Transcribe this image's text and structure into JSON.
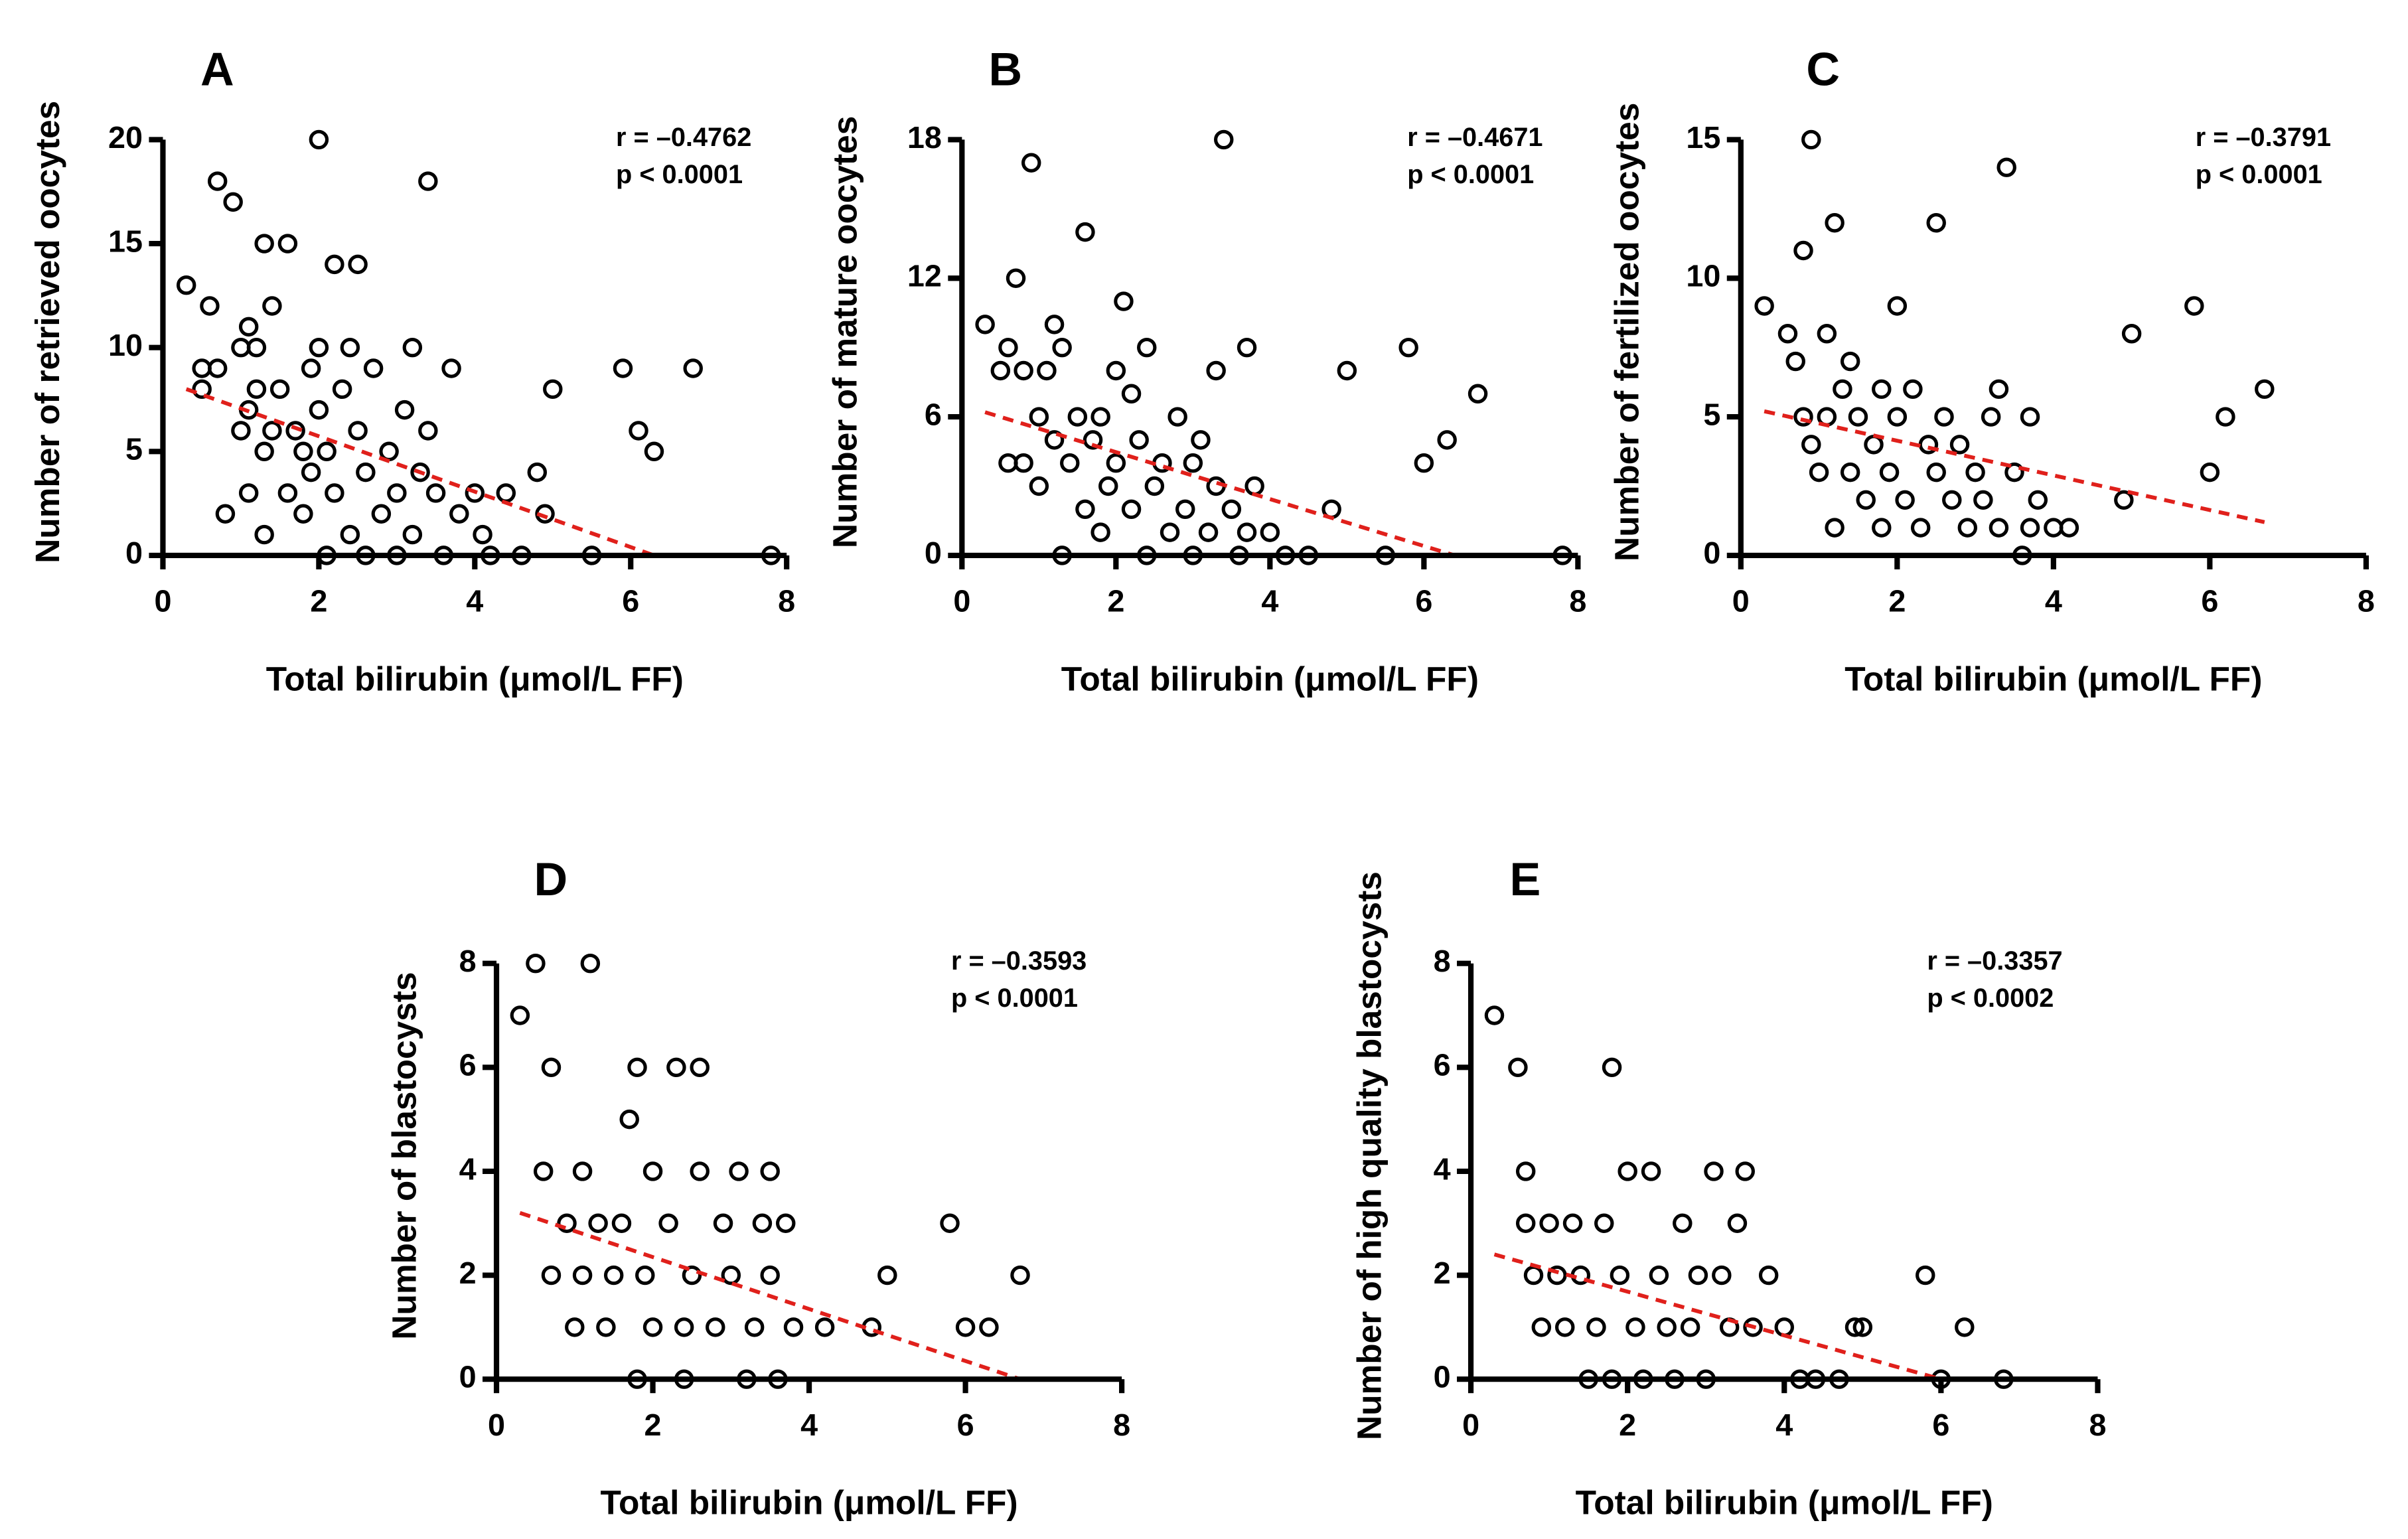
{
  "chart_data": [
    {
      "type": "scatter",
      "panel": "A",
      "annotation": [
        "r = –0.4762",
        "p < 0.0001"
      ],
      "xlabel": "Total bilirubin (μmol/L FF)",
      "ylabel": "Number of retrieved oocytes",
      "xlim": [
        0,
        8
      ],
      "ylim": [
        0,
        20
      ],
      "xticks": [
        0,
        2,
        4,
        6,
        8
      ],
      "yticks": [
        0,
        5,
        10,
        15,
        20
      ],
      "marker_color": "#000000",
      "x": [
        0.3,
        0.5,
        0.5,
        0.6,
        0.7,
        0.7,
        0.8,
        0.9,
        1.0,
        1.0,
        1.1,
        1.1,
        1.1,
        1.2,
        1.2,
        1.3,
        1.3,
        1.3,
        1.4,
        1.4,
        1.5,
        1.6,
        1.6,
        1.7,
        1.8,
        1.8,
        1.9,
        1.9,
        2.0,
        2.0,
        2.0,
        2.1,
        2.1,
        2.2,
        2.2,
        2.3,
        2.4,
        2.4,
        2.5,
        2.5,
        2.6,
        2.6,
        2.7,
        2.8,
        2.9,
        3.0,
        3.0,
        3.1,
        3.2,
        3.2,
        3.3,
        3.4,
        3.4,
        3.5,
        3.6,
        3.7,
        3.8,
        4.0,
        4.1,
        4.2,
        4.4,
        4.6,
        4.8,
        4.9,
        5.0,
        5.5,
        5.9,
        6.1,
        6.3,
        6.8,
        7.8
      ],
      "y": [
        13,
        8,
        9,
        12,
        9,
        18,
        2,
        17,
        10,
        6,
        11,
        7,
        3,
        8,
        10,
        15,
        5,
        1,
        12,
        6,
        8,
        3,
        15,
        6,
        5,
        2,
        9,
        4,
        7,
        20,
        10,
        5,
        0,
        14,
        3,
        8,
        1,
        10,
        6,
        14,
        4,
        0,
        9,
        2,
        5,
        3,
        0,
        7,
        10,
        1,
        4,
        18,
        6,
        3,
        0,
        9,
        2,
        3,
        1,
        0,
        3,
        0,
        4,
        2,
        8,
        0,
        9,
        6,
        5,
        9,
        0
      ],
      "trendline": {
        "color": "#e0201b",
        "x": [
          0.3,
          6.3
        ],
        "y": [
          8,
          0
        ]
      }
    },
    {
      "type": "scatter",
      "panel": "B",
      "annotation": [
        "r = –0.4671",
        "p < 0.0001"
      ],
      "xlabel": "Total bilirubin (μmol/L FF)",
      "ylabel": "Number of mature oocytes",
      "xlim": [
        0,
        8
      ],
      "ylim": [
        0,
        18
      ],
      "xticks": [
        0,
        2,
        4,
        6,
        8
      ],
      "yticks": [
        0,
        6,
        12,
        18
      ],
      "marker_color": "#000000",
      "x": [
        0.3,
        0.5,
        0.6,
        0.6,
        0.7,
        0.8,
        0.8,
        0.9,
        1.0,
        1.0,
        1.1,
        1.2,
        1.2,
        1.3,
        1.3,
        1.4,
        1.5,
        1.6,
        1.6,
        1.7,
        1.8,
        1.8,
        1.9,
        2.0,
        2.0,
        2.1,
        2.2,
        2.2,
        2.3,
        2.4,
        2.4,
        2.5,
        2.6,
        2.7,
        2.8,
        2.9,
        3.0,
        3.0,
        3.1,
        3.2,
        3.3,
        3.3,
        3.4,
        3.5,
        3.6,
        3.7,
        3.7,
        3.8,
        4.0,
        4.2,
        4.5,
        4.8,
        5.0,
        5.5,
        5.8,
        6.0,
        6.3,
        6.7,
        7.8
      ],
      "y": [
        10,
        8,
        4,
        9,
        12,
        4,
        8,
        17,
        6,
        3,
        8,
        10,
        5,
        0,
        9,
        4,
        6,
        2,
        14,
        5,
        1,
        6,
        3,
        8,
        4,
        11,
        2,
        7,
        5,
        0,
        9,
        3,
        4,
        1,
        6,
        2,
        0,
        4,
        5,
        1,
        8,
        3,
        18,
        2,
        0,
        9,
        1,
        3,
        1,
        0,
        0,
        2,
        8,
        0,
        9,
        4,
        5,
        7,
        0
      ],
      "trendline": {
        "color": "#e0201b",
        "x": [
          0.3,
          6.4
        ],
        "y": [
          6.2,
          0
        ]
      }
    },
    {
      "type": "scatter",
      "panel": "C",
      "annotation": [
        "r = –0.3791",
        "p < 0.0001"
      ],
      "xlabel": "Total bilirubin (μmol/L FF)",
      "ylabel": "Number of fertilized oocytes",
      "xlim": [
        0,
        8
      ],
      "ylim": [
        0,
        15
      ],
      "xticks": [
        0,
        2,
        4,
        6,
        8
      ],
      "yticks": [
        0,
        5,
        10,
        15
      ],
      "marker_color": "#000000",
      "x": [
        0.3,
        0.6,
        0.7,
        0.8,
        0.8,
        0.9,
        0.9,
        1.0,
        1.1,
        1.1,
        1.2,
        1.2,
        1.3,
        1.4,
        1.4,
        1.5,
        1.6,
        1.7,
        1.8,
        1.8,
        1.9,
        2.0,
        2.0,
        2.1,
        2.2,
        2.3,
        2.4,
        2.5,
        2.5,
        2.6,
        2.7,
        2.8,
        2.9,
        3.0,
        3.1,
        3.2,
        3.3,
        3.3,
        3.4,
        3.5,
        3.6,
        3.7,
        3.7,
        3.8,
        4.0,
        4.2,
        4.9,
        5.0,
        5.8,
        6.0,
        6.2,
        6.7
      ],
      "y": [
        9,
        8,
        7,
        5,
        11,
        4,
        15,
        3,
        8,
        5,
        12,
        1,
        6,
        3,
        7,
        5,
        2,
        4,
        1,
        6,
        3,
        9,
        5,
        2,
        6,
        1,
        4,
        3,
        12,
        5,
        2,
        4,
        1,
        3,
        2,
        5,
        6,
        1,
        14,
        3,
        0,
        5,
        1,
        2,
        1,
        1,
        2,
        8,
        9,
        3,
        5,
        6
      ],
      "trendline": {
        "color": "#e0201b",
        "x": [
          0.3,
          6.7
        ],
        "y": [
          5.2,
          1.2
        ]
      }
    },
    {
      "type": "scatter",
      "panel": "D",
      "annotation": [
        "r = –0.3593",
        "p < 0.0001"
      ],
      "xlabel": "Total bilirubin (μmol/L FF)",
      "ylabel": "Number of blastocysts",
      "xlim": [
        0,
        8
      ],
      "ylim": [
        0,
        8
      ],
      "xticks": [
        0,
        2,
        4,
        6,
        8
      ],
      "yticks": [
        0,
        2,
        4,
        6,
        8
      ],
      "marker_color": "#000000",
      "x": [
        0.3,
        0.5,
        0.6,
        0.7,
        0.7,
        0.9,
        1.0,
        1.1,
        1.1,
        1.2,
        1.3,
        1.4,
        1.5,
        1.6,
        1.7,
        1.8,
        1.8,
        1.9,
        2.0,
        2.0,
        2.2,
        2.3,
        2.4,
        2.4,
        2.5,
        2.6,
        2.6,
        2.8,
        2.9,
        3.0,
        3.1,
        3.2,
        3.3,
        3.4,
        3.5,
        3.5,
        3.6,
        3.7,
        3.8,
        4.2,
        4.8,
        5.0,
        5.8,
        6.0,
        6.3,
        6.7
      ],
      "y": [
        7,
        8,
        4,
        6,
        2,
        3,
        1,
        2,
        4,
        8,
        3,
        1,
        2,
        3,
        5,
        0,
        6,
        2,
        4,
        1,
        3,
        6,
        1,
        0,
        2,
        4,
        6,
        1,
        3,
        2,
        4,
        0,
        1,
        3,
        4,
        2,
        0,
        3,
        1,
        1,
        1,
        2,
        3,
        1,
        1,
        2
      ],
      "trendline": {
        "color": "#e0201b",
        "x": [
          0.3,
          6.7
        ],
        "y": [
          3.2,
          0
        ]
      }
    },
    {
      "type": "scatter",
      "panel": "E",
      "annotation": [
        "r = –0.3357",
        "p < 0.0002"
      ],
      "xlabel": "Total bilirubin (μmol/L FF)",
      "ylabel": "Number of high quality blastocysts",
      "xlim": [
        0,
        8
      ],
      "ylim": [
        0,
        8
      ],
      "xticks": [
        0,
        2,
        4,
        6,
        8
      ],
      "yticks": [
        0,
        2,
        4,
        6,
        8
      ],
      "marker_color": "#000000",
      "x": [
        0.3,
        0.6,
        0.7,
        0.7,
        0.8,
        0.9,
        1.0,
        1.1,
        1.2,
        1.3,
        1.4,
        1.5,
        1.6,
        1.7,
        1.8,
        1.8,
        1.9,
        2.0,
        2.1,
        2.2,
        2.3,
        2.4,
        2.5,
        2.6,
        2.7,
        2.8,
        2.9,
        3.0,
        3.1,
        3.2,
        3.3,
        3.4,
        3.5,
        3.6,
        3.8,
        4.0,
        4.2,
        4.4,
        4.7,
        4.9,
        5.0,
        5.8,
        6.0,
        6.3,
        6.8
      ],
      "y": [
        7,
        6,
        4,
        3,
        2,
        1,
        3,
        2,
        1,
        3,
        2,
        0,
        1,
        3,
        6,
        0,
        2,
        4,
        1,
        0,
        4,
        2,
        1,
        0,
        3,
        1,
        2,
        0,
        4,
        2,
        1,
        3,
        4,
        1,
        2,
        1,
        0,
        0,
        0,
        1,
        1,
        2,
        0,
        1,
        0
      ],
      "trendline": {
        "color": "#e0201b",
        "x": [
          0.3,
          6.0
        ],
        "y": [
          2.4,
          0
        ]
      }
    }
  ]
}
